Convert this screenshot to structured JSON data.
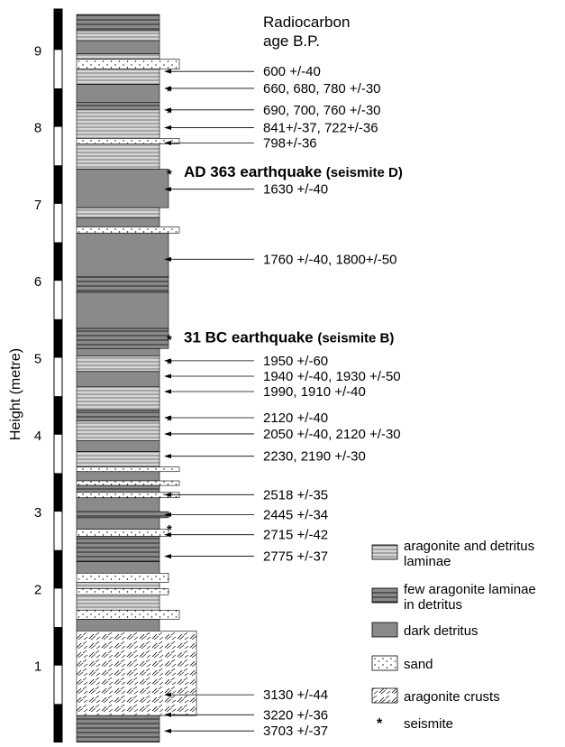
{
  "y_axis": {
    "title": "Height (metre)",
    "ticks": [
      "9",
      "8",
      "7",
      "6",
      "5",
      "4",
      "3",
      "2",
      "1"
    ]
  },
  "header": {
    "line1": "Radiocarbon",
    "line2": "age B.P."
  },
  "age_labels": [
    {
      "text": "600 +/-40",
      "height_m": 8.72
    },
    {
      "text": "660, 680, 780 +/-30",
      "height_m": 8.5
    },
    {
      "text": "690, 700, 760 +/-30",
      "height_m": 8.22
    },
    {
      "text": "841+/-37, 722+/-36",
      "height_m": 7.99
    },
    {
      "text": "798+/-36",
      "height_m": 7.79
    },
    {
      "text": "1630 +/-40",
      "height_m": 7.19
    },
    {
      "text": "1760 +/-40, 1800+/-50",
      "height_m": 6.28
    },
    {
      "text": "1950 +/-60",
      "height_m": 4.96
    },
    {
      "text": "1940 +/-40, 1930 +/-50",
      "height_m": 4.76
    },
    {
      "text": "1990, 1910 +/-40",
      "height_m": 4.56
    },
    {
      "text": "2120 +/-40",
      "height_m": 4.22
    },
    {
      "text": "2050 +/-40, 2120 +/-30",
      "height_m": 4.01
    },
    {
      "text": "2230, 2190 +/-30",
      "height_m": 3.72
    },
    {
      "text": "2518 +/-35",
      "height_m": 3.22
    },
    {
      "text": "2445 +/-34",
      "height_m": 2.96
    },
    {
      "text": "2715 +/-42",
      "height_m": 2.7
    },
    {
      "text": "2775 +/-37",
      "height_m": 2.42
    },
    {
      "text": "3130 +/-44",
      "height_m": 0.62
    },
    {
      "text": "3220 +/-36",
      "height_m": 0.36
    },
    {
      "text": "3703 +/-37",
      "height_m": 0.15
    }
  ],
  "earthquakes": [
    {
      "name": "AD 363 earthquake",
      "tag": "(seismite D)",
      "height_m": 7.42
    },
    {
      "name": "31 BC earthquake",
      "tag": "(seismite B)",
      "height_m": 5.27
    }
  ],
  "seismite_mark": "*",
  "legend": [
    {
      "pattern": "laminae",
      "label_line1": "aragonite and detritus",
      "label_line2": "laminae"
    },
    {
      "pattern": "few-laminae",
      "label_line1": "few aragonite laminae",
      "label_line2": "in detritus"
    },
    {
      "pattern": "detritus",
      "label_line1": "dark detritus",
      "label_line2": ""
    },
    {
      "pattern": "sand",
      "label_line1": "sand",
      "label_line2": ""
    },
    {
      "pattern": "crusts",
      "label_line1": "aragonite crusts",
      "label_line2": ""
    },
    {
      "pattern": "seismite",
      "label_line1": "seismite",
      "label_line2": ""
    }
  ],
  "colors": {
    "detritus": "#8a8a8a",
    "lamina_line": "#333333",
    "sand_bg": "#ffffff",
    "crust_bg": "#f2f2f2",
    "axis_black": "#000000"
  }
}
